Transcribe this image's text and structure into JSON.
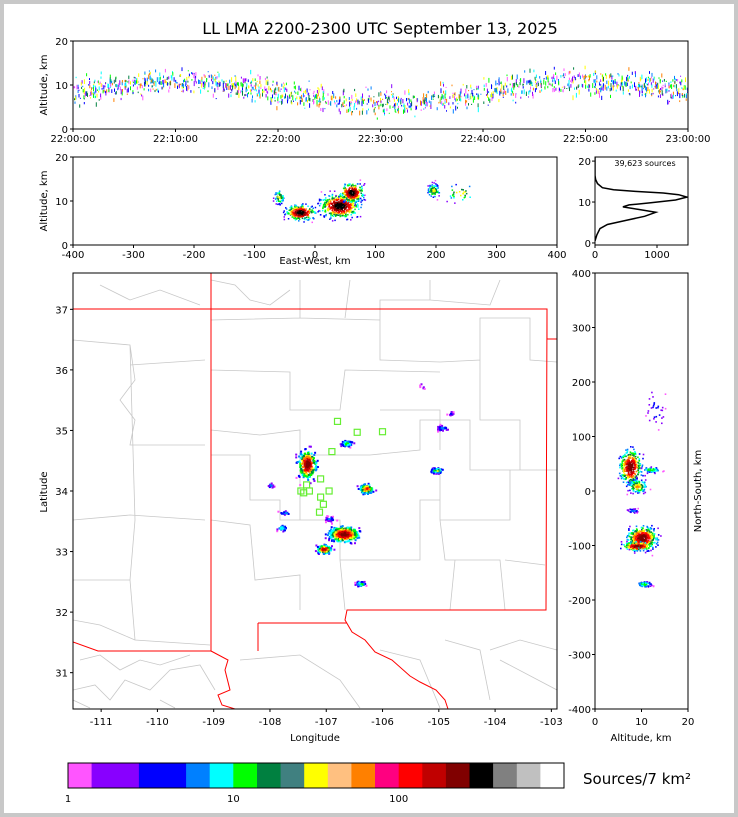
{
  "title": "LL LMA 2200-2300 UTC September 13, 2025",
  "source_count_label": "39,623 sources",
  "colorbar_unit": "Sources/7 km²",
  "chart_data": [
    {
      "id": "time_height",
      "type": "scatter",
      "ylabel": "Altitude, km",
      "xticks": [
        "22:00:00",
        "22:10:00",
        "22:20:00",
        "22:30:00",
        "22:40:00",
        "22:50:00",
        "23:00:00"
      ],
      "yticks": [
        0,
        10,
        20
      ],
      "ylim": [
        0,
        20
      ]
    },
    {
      "id": "ew_height",
      "type": "scatter",
      "xlabel": "East-West, km",
      "ylabel": "Altitude, km",
      "xlim": [
        -400,
        400
      ],
      "ylim": [
        0,
        20
      ],
      "xticks": [
        -400,
        -300,
        -200,
        -100,
        0,
        100,
        200,
        300,
        400
      ],
      "yticks": [
        0,
        10,
        20
      ]
    },
    {
      "id": "altitude_histogram",
      "type": "line",
      "xlim": [
        0,
        1500
      ],
      "ylim": [
        0,
        21
      ],
      "xticks": [
        0,
        1000
      ],
      "yticks": [
        0,
        10,
        20
      ],
      "profile": [
        [
          0,
          0.5
        ],
        [
          30,
          2
        ],
        [
          80,
          3.5
        ],
        [
          200,
          4.5
        ],
        [
          500,
          5.5
        ],
        [
          800,
          6.5
        ],
        [
          980,
          7.5
        ],
        [
          700,
          8.2
        ],
        [
          450,
          8.8
        ],
        [
          550,
          9.3
        ],
        [
          900,
          9.8
        ],
        [
          1300,
          10.5
        ],
        [
          1480,
          11.2
        ],
        [
          1350,
          11.8
        ],
        [
          1100,
          12.2
        ],
        [
          650,
          12.6
        ],
        [
          300,
          13.0
        ],
        [
          120,
          13.5
        ],
        [
          40,
          14.5
        ],
        [
          10,
          15.5
        ],
        [
          0,
          16.5
        ],
        [
          0,
          21
        ]
      ]
    },
    {
      "id": "plan_view",
      "type": "scatter",
      "xlabel": "Longitude",
      "ylabel": "Latitude",
      "xlim": [
        -111.5,
        -102.9
      ],
      "ylim": [
        30.4,
        37.6
      ],
      "xticks": [
        -111,
        -110,
        -109,
        -108,
        -107,
        -106,
        -105,
        -104,
        -103
      ],
      "yticks": [
        31,
        32,
        33,
        34,
        35,
        36,
        37
      ],
      "stations": [
        [
          -106.8,
          35.15
        ],
        [
          -106.45,
          34.97
        ],
        [
          -106.0,
          34.98
        ],
        [
          -106.9,
          34.65
        ],
        [
          -107.35,
          34.1
        ],
        [
          -107.1,
          34.2
        ],
        [
          -107.3,
          34.0
        ],
        [
          -106.95,
          34.0
        ],
        [
          -107.1,
          33.9
        ],
        [
          -107.05,
          33.78
        ],
        [
          -107.12,
          33.65
        ],
        [
          -107.45,
          34.0
        ],
        [
          -107.4,
          33.97
        ]
      ]
    },
    {
      "id": "ns_height",
      "type": "scatter",
      "xlabel": "Altitude, km",
      "ylabel": "North-South, km",
      "xlim": [
        0,
        20
      ],
      "ylim": [
        -400,
        400
      ],
      "xticks": [
        0,
        10,
        20
      ],
      "yticks": [
        -400,
        -300,
        -200,
        -100,
        0,
        100,
        200,
        300,
        400
      ]
    },
    {
      "id": "colorbar",
      "type": "heatmap",
      "scale": "log",
      "range": [
        1,
        1000
      ],
      "tick_labels": [
        "1",
        "10",
        "100"
      ],
      "colors": [
        "#ff55ff",
        "#8800ff",
        "#8800ff",
        "#0000ff",
        "#0000ff",
        "#0080ff",
        "#00ffff",
        "#00ff00",
        "#008040",
        "#408080",
        "#ffff00",
        "#ffc080",
        "#ff8000",
        "#ff0080",
        "#ff0000",
        "#c00000",
        "#800000",
        "#000000",
        "#808080",
        "#c0c0c0",
        "#ffffff"
      ]
    }
  ]
}
